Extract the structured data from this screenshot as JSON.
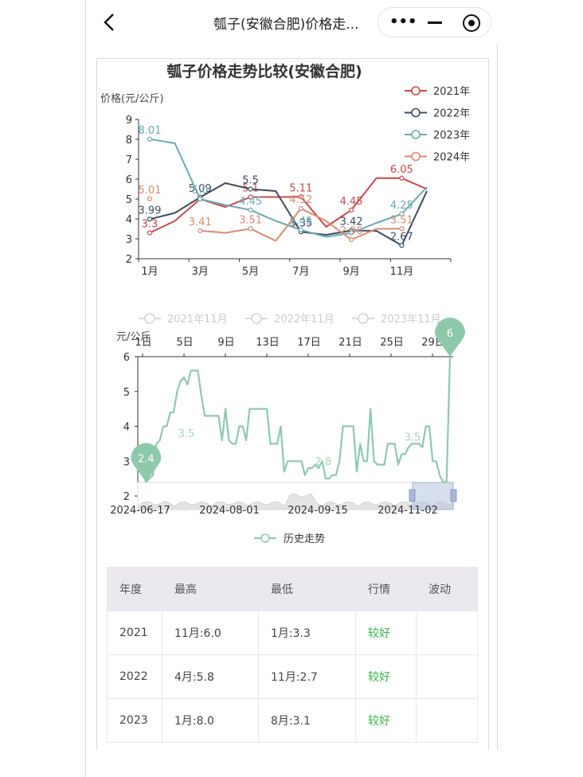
{
  "header": {
    "title": "瓠子(安徽合肥)价格走...",
    "back_icon": "chevron-left-icon",
    "more_icon": "more-dots-icon",
    "minimize_icon": "minus-icon",
    "close_icon": "target-icon"
  },
  "chart1": {
    "title": "瓠子价格走势比较(安徽合肥)",
    "ylabel": "价格(元/公斤)",
    "legend": [
      "2021年",
      "2022年",
      "2023年",
      "2024年"
    ]
  },
  "chart2": {
    "ylabel": "元/公斤",
    "legend_top": [
      "2021年11月",
      "2022年11月",
      "2023年11月"
    ],
    "legend_bottom": "历史走势",
    "zoom_start": "2024-06-17",
    "zoom_end": "2024-11-02"
  },
  "chart_data": [
    {
      "type": "line",
      "title": "瓠子价格走势比较(安徽合肥)",
      "ylabel": "价格(元/公斤)",
      "ylim": [
        2,
        9
      ],
      "yticks": [
        2,
        3,
        4,
        5,
        6,
        7,
        8,
        9
      ],
      "x": [
        "1月",
        "2月",
        "3月",
        "4月",
        "5月",
        "6月",
        "7月",
        "8月",
        "9月",
        "10月",
        "11月",
        "12月"
      ],
      "xtick_labels": [
        "1月",
        "3月",
        "5月",
        "7月",
        "9月",
        "11月"
      ],
      "legend_position": "top-right",
      "series": [
        {
          "name": "2021年",
          "color": "#c9494c",
          "values": [
            3.3,
            3.9,
            5.0,
            4.6,
            5.1,
            5.1,
            5.11,
            3.6,
            4.45,
            6.05,
            6.05,
            5.5
          ],
          "labels": {
            "0": "3.3",
            "3": "",
            "4": "5.1",
            "6": "5.11",
            "8": "4.45",
            "10": "6.05"
          }
        },
        {
          "name": "2022年",
          "color": "#3d4d5e",
          "values": [
            3.99,
            4.3,
            5.09,
            5.8,
            5.5,
            5.4,
            3.35,
            3.2,
            3.42,
            3.4,
            2.67,
            5.4
          ],
          "labels": {
            "0": "3.99",
            "2": "5.09",
            "4": "5.5",
            "6": "3.35",
            "8": "3.42",
            "10": "2.67"
          }
        },
        {
          "name": "2023年",
          "color": "#6aa9b2",
          "values": [
            8.01,
            7.8,
            5.0,
            4.7,
            4.45,
            3.9,
            3.45,
            3.1,
            3.3,
            3.8,
            4.25,
            5.6
          ],
          "labels": {
            "0": "8.01",
            "2": "5.0",
            "4": "4.45",
            "6": "3.45",
            "8": "",
            "10": "4.25"
          }
        },
        {
          "name": "2024年",
          "color": "#d98b72",
          "values": [
            5.01,
            null,
            3.41,
            3.3,
            3.51,
            2.9,
            4.52,
            3.9,
            2.96,
            3.5,
            3.51,
            null
          ],
          "labels": {
            "0": "5.01",
            "2": "3.41",
            "4": "3.51",
            "6": "4.52",
            "8": "2.96",
            "10": "3.51"
          }
        }
      ]
    },
    {
      "type": "line",
      "ylabel": "元/公斤",
      "ylim": [
        2,
        6
      ],
      "yticks": [
        2,
        3,
        4,
        5,
        6
      ],
      "xtick_labels": [
        "1日",
        "5日",
        "9日",
        "13日",
        "17日",
        "21日",
        "25日",
        "29日"
      ],
      "legend": [
        "2021年11月",
        "2022年11月",
        "2023年11月",
        "历史走势"
      ],
      "series": [
        {
          "name": "历史走势",
          "color": "#8fc9ac",
          "values": [
            2.7,
            2.4,
            2.5,
            2.6,
            3.5,
            3.6,
            4.0,
            4.0,
            4.4,
            4.4,
            5.0,
            5.3,
            5.4,
            5.2,
            5.6,
            5.6,
            5.6,
            4.9,
            4.3,
            4.3,
            4.3,
            4.3,
            4.3,
            3.6,
            4.5,
            3.6,
            3.5,
            3.5,
            4.0,
            4.0,
            3.6,
            4.5,
            4.5,
            4.5,
            4.5,
            4.5,
            4.5,
            3.5,
            3.5,
            3.5,
            4.0,
            2.7,
            3.0,
            3.0,
            3.0,
            3.0,
            3.0,
            2.6,
            2.8,
            2.8,
            2.9,
            2.8,
            3.0,
            2.5,
            2.5,
            2.6,
            2.6,
            3.0,
            4.0,
            4.0,
            4.0,
            4.0,
            2.7,
            3.5,
            3.0,
            3.0,
            4.5,
            3.0,
            2.9,
            2.9,
            2.9,
            3.5,
            3.5,
            3.5,
            2.9,
            3.2,
            3.2,
            3.4,
            3.5,
            3.5,
            3.5,
            3.4,
            4.0,
            4.0,
            3.0,
            3.0,
            2.6,
            2.4,
            2.4,
            6.0
          ],
          "markers": [
            {
              "label": "2.4",
              "role": "min"
            },
            {
              "label": "6",
              "role": "max"
            }
          ],
          "labels": [
            "3.5",
            "2.8",
            "3.5"
          ]
        }
      ],
      "zoom_range": [
        "2024-06-17",
        "2024-11-02"
      ],
      "zoom_ticks": [
        "2024-06-17",
        "2024-08-01",
        "2024-09-15",
        "2024-11-02"
      ]
    }
  ],
  "table": {
    "headers": [
      "年度",
      "最高",
      "最低",
      "行情",
      "波动"
    ],
    "rows": [
      [
        "2021",
        "11月:6.0",
        "1月:3.3",
        "较好",
        ""
      ],
      [
        "2022",
        "4月:5.8",
        "11月:2.7",
        "较好",
        ""
      ],
      [
        "2023",
        "1月:8.0",
        "8月:3.1",
        "较好",
        ""
      ]
    ]
  }
}
